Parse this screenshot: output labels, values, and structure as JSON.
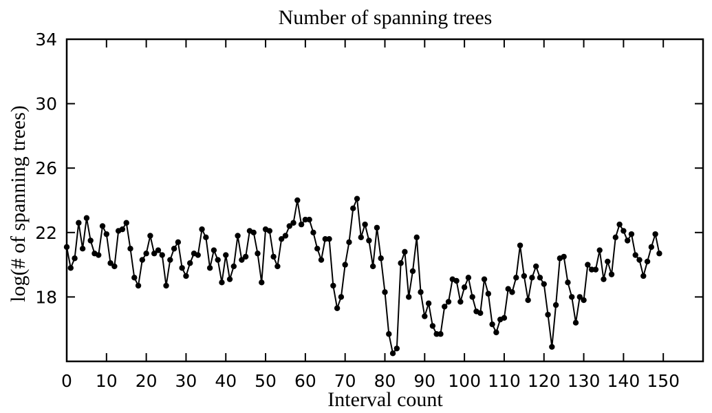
{
  "chart_data": {
    "type": "line",
    "title": "Number of spanning trees",
    "xlabel": "Interval count",
    "ylabel": "log(# of spanning trees)",
    "xlim": [
      0,
      160
    ],
    "ylim": [
      14,
      34
    ],
    "xticks": [
      0,
      10,
      20,
      30,
      40,
      50,
      60,
      70,
      80,
      90,
      100,
      110,
      120,
      130,
      140,
      150
    ],
    "yticks": [
      18,
      22,
      26,
      30,
      34
    ],
    "grid": false,
    "legend": "none",
    "series": [
      {
        "color": "#000000",
        "marker": "circle",
        "x": [
          0,
          1,
          2,
          3,
          4,
          5,
          6,
          7,
          8,
          9,
          10,
          11,
          12,
          13,
          14,
          15,
          16,
          17,
          18,
          19,
          20,
          21,
          22,
          23,
          24,
          25,
          26,
          27,
          28,
          29,
          30,
          31,
          32,
          33,
          34,
          35,
          36,
          37,
          38,
          39,
          40,
          41,
          42,
          43,
          44,
          45,
          46,
          47,
          48,
          49,
          50,
          51,
          52,
          53,
          54,
          55,
          56,
          57,
          58,
          59,
          60,
          61,
          62,
          63,
          64,
          65,
          66,
          67,
          68,
          69,
          70,
          71,
          72,
          73,
          74,
          75,
          76,
          77,
          78,
          79,
          80,
          81,
          82,
          83,
          84,
          85,
          86,
          87,
          88,
          89,
          90,
          91,
          92,
          93,
          94,
          95,
          96,
          97,
          98,
          99,
          100,
          101,
          102,
          103,
          104,
          105,
          106,
          107,
          108,
          109,
          110,
          111,
          112,
          113,
          114,
          115,
          116,
          117,
          118,
          119,
          120,
          121,
          122,
          123,
          124,
          125,
          126,
          127,
          128,
          129,
          130,
          131,
          132,
          133,
          134,
          135,
          136,
          137,
          138,
          139,
          140,
          141,
          142,
          143,
          144,
          145,
          146,
          147,
          148,
          149
        ],
        "y": [
          21.1,
          19.8,
          20.4,
          22.6,
          21.0,
          22.9,
          21.5,
          20.7,
          20.6,
          22.4,
          21.9,
          20.1,
          19.9,
          22.1,
          22.2,
          22.6,
          21.0,
          19.2,
          18.7,
          20.3,
          20.7,
          21.8,
          20.7,
          20.9,
          20.6,
          18.7,
          20.3,
          21.0,
          21.4,
          19.8,
          19.3,
          20.1,
          20.7,
          20.6,
          22.2,
          21.7,
          19.8,
          20.9,
          20.3,
          18.9,
          20.6,
          19.1,
          19.9,
          21.8,
          20.3,
          20.5,
          22.1,
          22.0,
          20.7,
          18.9,
          22.2,
          22.1,
          20.5,
          19.9,
          21.6,
          21.8,
          22.4,
          22.6,
          24.0,
          22.5,
          22.8,
          22.8,
          22.0,
          21.0,
          20.3,
          21.6,
          21.6,
          18.7,
          17.3,
          18.0,
          20.0,
          21.4,
          23.5,
          24.1,
          21.7,
          22.5,
          21.5,
          19.9,
          22.3,
          20.4,
          18.3,
          15.7,
          14.5,
          14.8,
          20.1,
          20.8,
          18.0,
          19.6,
          21.7,
          18.3,
          16.8,
          17.6,
          16.2,
          15.7,
          15.7,
          17.4,
          17.7,
          19.1,
          19.0,
          17.7,
          18.6,
          19.2,
          18.0,
          17.1,
          17.0,
          19.1,
          18.2,
          16.3,
          15.8,
          16.6,
          16.7,
          18.5,
          18.3,
          19.2,
          21.2,
          19.3,
          17.8,
          19.2,
          19.9,
          19.2,
          18.8,
          16.9,
          14.9,
          17.5,
          20.4,
          20.5,
          18.9,
          18.0,
          16.4,
          18.0,
          17.8,
          20.0,
          19.7,
          19.7,
          20.9,
          19.1,
          20.2,
          19.4,
          21.7,
          22.5,
          22.1,
          21.5,
          21.9,
          20.6,
          20.3,
          19.3,
          20.2,
          21.1,
          21.9,
          20.7
        ]
      }
    ]
  }
}
